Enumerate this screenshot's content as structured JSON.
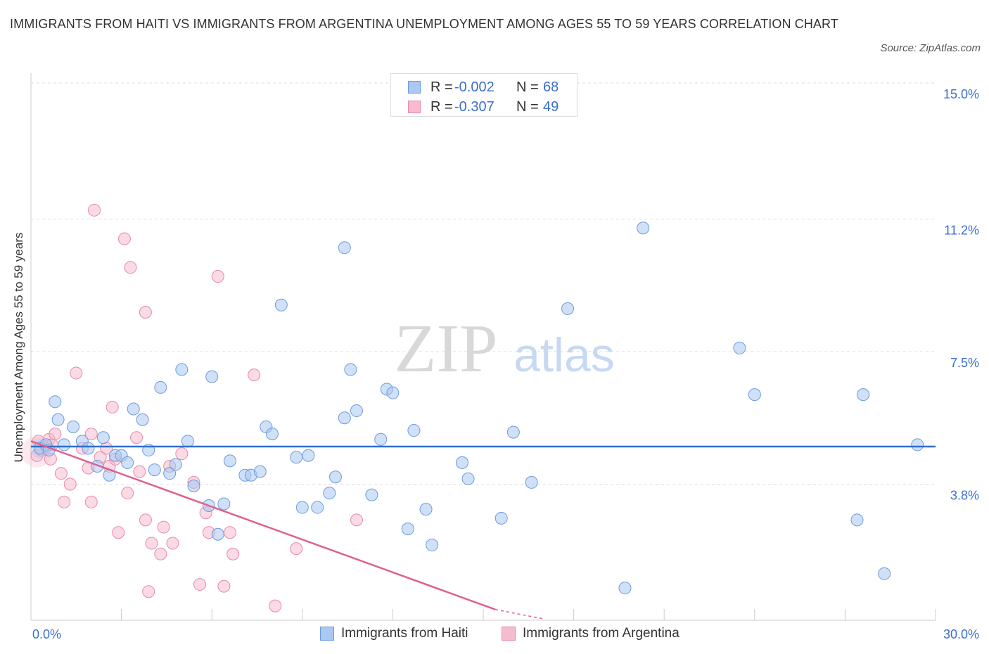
{
  "title": "IMMIGRANTS FROM HAITI VS IMMIGRANTS FROM ARGENTINA UNEMPLOYMENT AMONG AGES 55 TO 59 YEARS CORRELATION CHART",
  "source": "Source: ZipAtlas.com",
  "watermark": {
    "zip": "ZIP",
    "atlas": "atlas"
  },
  "legend": {
    "haiti": {
      "r_label": "R =",
      "r_value": "-0.002",
      "n_label": "N =",
      "n_value": "68"
    },
    "argentina": {
      "r_label": "R =",
      "r_value": "-0.307",
      "n_label": "N =",
      "n_value": "49"
    }
  },
  "colors": {
    "haiti_fill": "#aac8f0",
    "haiti_stroke": "#6b9be0",
    "haiti_line": "#2f6fcb",
    "argentina_fill": "#f5bccd",
    "argentina_stroke": "#e88aa8",
    "argentina_line": "#e0608c",
    "tick_text": "#3a6fd0",
    "grid": "#dddddd"
  },
  "chart_data": {
    "type": "scatter",
    "title": "IMMIGRANTS FROM HAITI VS IMMIGRANTS FROM ARGENTINA UNEMPLOYMENT AMONG AGES 55 TO 59 YEARS CORRELATION CHART",
    "xlabel": "",
    "ylabel": "Unemployment Among Ages 55 to 59 years",
    "xlim": [
      0,
      30
    ],
    "ylim": [
      0,
      15
    ],
    "x_tick_labels": [
      "0.0%",
      "30.0%"
    ],
    "y_ticks": [
      3.8,
      7.5,
      11.2,
      15.0
    ],
    "y_tick_labels": [
      "3.8%",
      "7.5%",
      "11.2%",
      "15.0%"
    ],
    "grid": true,
    "series": [
      {
        "name": "Immigrants from Haiti",
        "r": -0.002,
        "n": 68,
        "trend": {
          "x": [
            0,
            30
          ],
          "y": [
            4.85,
            4.85
          ]
        },
        "points": [
          [
            0.3,
            4.8
          ],
          [
            0.5,
            4.9
          ],
          [
            0.6,
            4.75
          ],
          [
            0.8,
            6.1
          ],
          [
            0.9,
            5.6
          ],
          [
            1.1,
            4.9
          ],
          [
            1.4,
            5.4
          ],
          [
            1.7,
            5.0
          ],
          [
            1.9,
            4.8
          ],
          [
            2.2,
            4.3
          ],
          [
            2.4,
            5.1
          ],
          [
            2.6,
            4.05
          ],
          [
            2.8,
            4.6
          ],
          [
            3.0,
            4.6
          ],
          [
            3.2,
            4.4
          ],
          [
            3.4,
            5.9
          ],
          [
            3.7,
            5.6
          ],
          [
            3.9,
            4.75
          ],
          [
            4.1,
            4.2
          ],
          [
            4.3,
            6.5
          ],
          [
            4.6,
            4.1
          ],
          [
            4.8,
            4.35
          ],
          [
            5.0,
            7.0
          ],
          [
            5.2,
            5.0
          ],
          [
            5.4,
            3.75
          ],
          [
            5.9,
            3.2
          ],
          [
            6.0,
            6.8
          ],
          [
            6.2,
            2.4
          ],
          [
            6.4,
            3.25
          ],
          [
            6.6,
            4.45
          ],
          [
            7.1,
            4.05
          ],
          [
            7.3,
            4.05
          ],
          [
            7.6,
            4.15
          ],
          [
            7.8,
            5.4
          ],
          [
            8.0,
            5.2
          ],
          [
            8.3,
            8.8
          ],
          [
            8.8,
            4.55
          ],
          [
            9.0,
            3.15
          ],
          [
            9.2,
            4.6
          ],
          [
            9.5,
            3.15
          ],
          [
            9.9,
            3.55
          ],
          [
            10.1,
            4.0
          ],
          [
            10.4,
            5.65
          ],
          [
            10.4,
            10.4
          ],
          [
            10.6,
            7.0
          ],
          [
            10.8,
            5.85
          ],
          [
            11.3,
            3.5
          ],
          [
            11.6,
            5.05
          ],
          [
            11.8,
            6.45
          ],
          [
            12.0,
            6.35
          ],
          [
            12.5,
            2.55
          ],
          [
            12.7,
            5.3
          ],
          [
            13.1,
            3.1
          ],
          [
            13.3,
            2.1
          ],
          [
            14.3,
            4.4
          ],
          [
            14.5,
            3.95
          ],
          [
            15.6,
            2.85
          ],
          [
            16.0,
            5.25
          ],
          [
            16.6,
            3.85
          ],
          [
            17.8,
            8.7
          ],
          [
            19.7,
            0.9
          ],
          [
            20.3,
            10.95
          ],
          [
            23.5,
            7.6
          ],
          [
            24.0,
            6.3
          ],
          [
            27.4,
            2.8
          ],
          [
            27.6,
            6.3
          ],
          [
            28.3,
            1.3
          ],
          [
            29.4,
            4.9
          ]
        ]
      },
      {
        "name": "Immigrants from Argentina",
        "r": -0.307,
        "n": 49,
        "trend": {
          "x": [
            0,
            15.4
          ],
          "y": [
            5.0,
            0.3
          ]
        },
        "trend_dashed": {
          "x": [
            15.4,
            17.0
          ],
          "y": [
            0.3,
            -0.2
          ]
        },
        "points": [
          [
            0.2,
            4.6
          ],
          [
            0.25,
            5.0
          ],
          [
            0.35,
            4.75
          ],
          [
            0.5,
            4.85
          ],
          [
            0.6,
            5.05
          ],
          [
            0.65,
            4.5
          ],
          [
            0.7,
            4.9
          ],
          [
            0.8,
            5.2
          ],
          [
            1.0,
            4.1
          ],
          [
            1.1,
            3.3
          ],
          [
            1.3,
            3.8
          ],
          [
            1.5,
            6.9
          ],
          [
            1.7,
            4.8
          ],
          [
            1.9,
            4.25
          ],
          [
            2.0,
            5.2
          ],
          [
            2.0,
            3.3
          ],
          [
            2.1,
            11.45
          ],
          [
            2.3,
            4.55
          ],
          [
            2.5,
            4.8
          ],
          [
            2.6,
            4.3
          ],
          [
            2.7,
            5.95
          ],
          [
            2.8,
            4.5
          ],
          [
            2.9,
            2.45
          ],
          [
            3.1,
            10.65
          ],
          [
            3.2,
            3.55
          ],
          [
            3.3,
            9.85
          ],
          [
            3.5,
            5.1
          ],
          [
            3.6,
            4.15
          ],
          [
            3.8,
            2.8
          ],
          [
            3.8,
            8.6
          ],
          [
            3.9,
            0.8
          ],
          [
            4.0,
            2.15
          ],
          [
            4.3,
            1.85
          ],
          [
            4.4,
            2.6
          ],
          [
            4.6,
            4.3
          ],
          [
            4.7,
            2.15
          ],
          [
            5.0,
            4.65
          ],
          [
            5.4,
            3.85
          ],
          [
            5.6,
            1.0
          ],
          [
            5.8,
            3.0
          ],
          [
            5.9,
            2.45
          ],
          [
            6.2,
            9.6
          ],
          [
            6.4,
            0.95
          ],
          [
            6.6,
            2.45
          ],
          [
            6.7,
            1.85
          ],
          [
            7.4,
            6.85
          ],
          [
            8.1,
            0.4
          ],
          [
            8.8,
            2.0
          ],
          [
            10.8,
            2.8
          ]
        ]
      }
    ]
  },
  "bottom_legend": {
    "haiti": "Immigrants from Haiti",
    "argentina": "Immigrants from Argentina"
  }
}
